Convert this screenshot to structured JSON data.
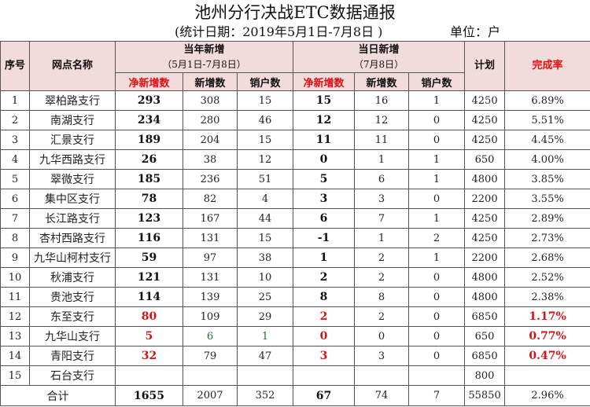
{
  "title": "池州分行决战ETC数据通报",
  "period": "(统计日期：2019年5月1日-7月8日 )",
  "unit": "单位：户",
  "headers": {
    "seq": "序号",
    "name": "网点名称",
    "year_group": "当年新增",
    "year_range": "（5月1日-7月8日）",
    "day_group": "当日新增",
    "day_range": "（7月8日）",
    "net": "净新增数",
    "new": "新增数",
    "cancel": "销户数",
    "plan": "计划",
    "rate": "完成率"
  },
  "accent_color": "#d01515",
  "header_bg": "#f2dcdb",
  "rows": [
    {
      "seq": "1",
      "name": "翠柏路支行",
      "y_net": "293",
      "y_new": "308",
      "y_cancel": "15",
      "d_net": "15",
      "d_new": "16",
      "d_cancel": "1",
      "plan": "4250",
      "rate": "6.89%"
    },
    {
      "seq": "2",
      "name": "南湖支行",
      "y_net": "234",
      "y_new": "280",
      "y_cancel": "46",
      "d_net": "12",
      "d_new": "12",
      "d_cancel": "0",
      "plan": "4250",
      "rate": "5.51%"
    },
    {
      "seq": "3",
      "name": "汇景支行",
      "y_net": "189",
      "y_new": "204",
      "y_cancel": "15",
      "d_net": "11",
      "d_new": "11",
      "d_cancel": "0",
      "plan": "4250",
      "rate": "4.45%"
    },
    {
      "seq": "4",
      "name": "九华西路支行",
      "y_net": "26",
      "y_new": "38",
      "y_cancel": "12",
      "d_net": "0",
      "d_new": "1",
      "d_cancel": "1",
      "plan": "650",
      "rate": "4.00%"
    },
    {
      "seq": "5",
      "name": "翠微支行",
      "y_net": "185",
      "y_new": "236",
      "y_cancel": "51",
      "d_net": "5",
      "d_new": "6",
      "d_cancel": "1",
      "plan": "4800",
      "rate": "3.85%"
    },
    {
      "seq": "6",
      "name": "集中区支行",
      "y_net": "78",
      "y_new": "82",
      "y_cancel": "4",
      "d_net": "3",
      "d_new": "3",
      "d_cancel": "0",
      "plan": "2200",
      "rate": "3.55%"
    },
    {
      "seq": "7",
      "name": "长江路支行",
      "y_net": "123",
      "y_new": "167",
      "y_cancel": "44",
      "d_net": "6",
      "d_new": "7",
      "d_cancel": "1",
      "plan": "4250",
      "rate": "2.89%"
    },
    {
      "seq": "8",
      "name": "杏村西路支行",
      "y_net": "116",
      "y_new": "131",
      "y_cancel": "15",
      "d_net": "-1",
      "d_new": "1",
      "d_cancel": "2",
      "plan": "4250",
      "rate": "2.73%"
    },
    {
      "seq": "9",
      "name": "九华山柯村支行",
      "y_net": "59",
      "y_new": "97",
      "y_cancel": "38",
      "d_net": "1",
      "d_new": "2",
      "d_cancel": "1",
      "plan": "2200",
      "rate": "2.68%"
    },
    {
      "seq": "10",
      "name": "秋浦支行",
      "y_net": "121",
      "y_new": "131",
      "y_cancel": "10",
      "d_net": "2",
      "d_new": "2",
      "d_cancel": "0",
      "plan": "4800",
      "rate": "2.52%"
    },
    {
      "seq": "11",
      "name": "贵池支行",
      "y_net": "114",
      "y_new": "139",
      "y_cancel": "25",
      "d_net": "8",
      "d_new": "8",
      "d_cancel": "0",
      "plan": "4800",
      "rate": "2.38%"
    },
    {
      "seq": "12",
      "name": "东至支行",
      "y_net": "80",
      "y_new": "109",
      "y_cancel": "29",
      "d_net": "2",
      "d_new": "2",
      "d_cancel": "0",
      "plan": "6850",
      "rate": "1.17%",
      "highlight": true
    },
    {
      "seq": "13",
      "name": "九华山支行",
      "y_net": "5",
      "y_new": "6",
      "y_cancel": "1",
      "d_net": "0",
      "d_new": "0",
      "d_cancel": "0",
      "plan": "650",
      "rate": "0.77%",
      "highlight": true
    },
    {
      "seq": "14",
      "name": "青阳支行",
      "y_net": "32",
      "y_new": "79",
      "y_cancel": "47",
      "d_net": "3",
      "d_new": "3",
      "d_cancel": "0",
      "plan": "6850",
      "rate": "0.47%",
      "highlight": true
    },
    {
      "seq": "15",
      "name": "石台支行",
      "y_net": "",
      "y_new": "",
      "y_cancel": "",
      "d_net": "",
      "d_new": "",
      "d_cancel": "",
      "plan": "800",
      "rate": ""
    }
  ],
  "total": {
    "label": "合计",
    "y_net": "1655",
    "y_new": "2007",
    "y_cancel": "352",
    "d_net": "67",
    "d_new": "74",
    "d_cancel": "7",
    "plan": "55850",
    "rate": "2.96%"
  }
}
